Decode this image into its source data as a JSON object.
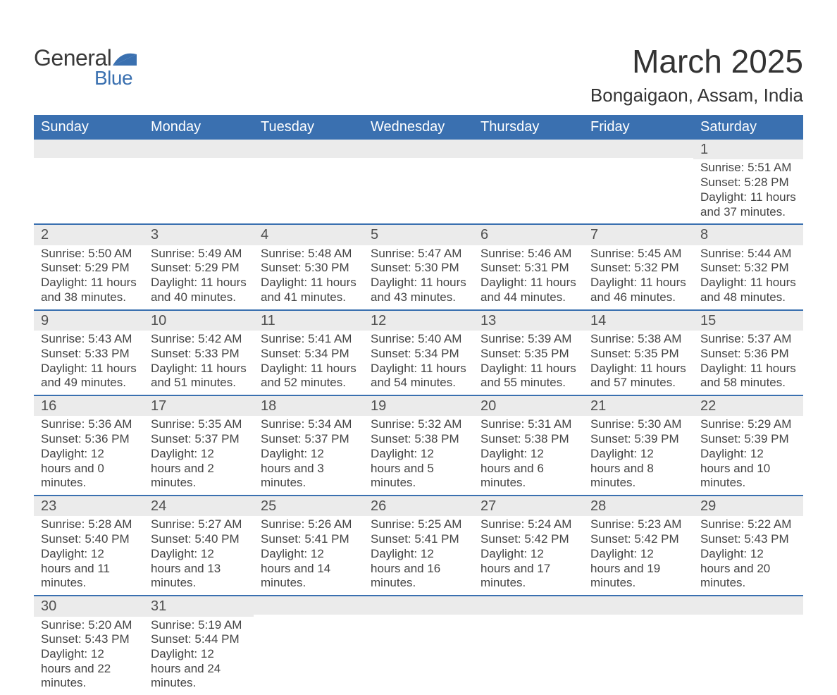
{
  "brand": {
    "word1": "General",
    "word2": "Blue",
    "accent_color": "#3a70b0"
  },
  "title": "March 2025",
  "location": "Bongaigaon, Assam, India",
  "colors": {
    "header_bg": "#3a70b0",
    "header_text": "#ffffff",
    "strip_bg": "#ebebeb",
    "body_text": "#444444",
    "row_border": "#3a70b0",
    "page_bg": "#ffffff"
  },
  "typography": {
    "title_fontsize": 46,
    "location_fontsize": 26,
    "dayheader_fontsize": 20,
    "daynum_fontsize": 20,
    "body_fontsize": 17
  },
  "day_headers": [
    "Sunday",
    "Monday",
    "Tuesday",
    "Wednesday",
    "Thursday",
    "Friday",
    "Saturday"
  ],
  "weeks": [
    [
      {
        "n": "",
        "sunrise": "",
        "sunset": "",
        "daylight": ""
      },
      {
        "n": "",
        "sunrise": "",
        "sunset": "",
        "daylight": ""
      },
      {
        "n": "",
        "sunrise": "",
        "sunset": "",
        "daylight": ""
      },
      {
        "n": "",
        "sunrise": "",
        "sunset": "",
        "daylight": ""
      },
      {
        "n": "",
        "sunrise": "",
        "sunset": "",
        "daylight": ""
      },
      {
        "n": "",
        "sunrise": "",
        "sunset": "",
        "daylight": ""
      },
      {
        "n": "1",
        "sunrise": "Sunrise: 5:51 AM",
        "sunset": "Sunset: 5:28 PM",
        "daylight": "Daylight: 11 hours and 37 minutes."
      }
    ],
    [
      {
        "n": "2",
        "sunrise": "Sunrise: 5:50 AM",
        "sunset": "Sunset: 5:29 PM",
        "daylight": "Daylight: 11 hours and 38 minutes."
      },
      {
        "n": "3",
        "sunrise": "Sunrise: 5:49 AM",
        "sunset": "Sunset: 5:29 PM",
        "daylight": "Daylight: 11 hours and 40 minutes."
      },
      {
        "n": "4",
        "sunrise": "Sunrise: 5:48 AM",
        "sunset": "Sunset: 5:30 PM",
        "daylight": "Daylight: 11 hours and 41 minutes."
      },
      {
        "n": "5",
        "sunrise": "Sunrise: 5:47 AM",
        "sunset": "Sunset: 5:30 PM",
        "daylight": "Daylight: 11 hours and 43 minutes."
      },
      {
        "n": "6",
        "sunrise": "Sunrise: 5:46 AM",
        "sunset": "Sunset: 5:31 PM",
        "daylight": "Daylight: 11 hours and 44 minutes."
      },
      {
        "n": "7",
        "sunrise": "Sunrise: 5:45 AM",
        "sunset": "Sunset: 5:32 PM",
        "daylight": "Daylight: 11 hours and 46 minutes."
      },
      {
        "n": "8",
        "sunrise": "Sunrise: 5:44 AM",
        "sunset": "Sunset: 5:32 PM",
        "daylight": "Daylight: 11 hours and 48 minutes."
      }
    ],
    [
      {
        "n": "9",
        "sunrise": "Sunrise: 5:43 AM",
        "sunset": "Sunset: 5:33 PM",
        "daylight": "Daylight: 11 hours and 49 minutes."
      },
      {
        "n": "10",
        "sunrise": "Sunrise: 5:42 AM",
        "sunset": "Sunset: 5:33 PM",
        "daylight": "Daylight: 11 hours and 51 minutes."
      },
      {
        "n": "11",
        "sunrise": "Sunrise: 5:41 AM",
        "sunset": "Sunset: 5:34 PM",
        "daylight": "Daylight: 11 hours and 52 minutes."
      },
      {
        "n": "12",
        "sunrise": "Sunrise: 5:40 AM",
        "sunset": "Sunset: 5:34 PM",
        "daylight": "Daylight: 11 hours and 54 minutes."
      },
      {
        "n": "13",
        "sunrise": "Sunrise: 5:39 AM",
        "sunset": "Sunset: 5:35 PM",
        "daylight": "Daylight: 11 hours and 55 minutes."
      },
      {
        "n": "14",
        "sunrise": "Sunrise: 5:38 AM",
        "sunset": "Sunset: 5:35 PM",
        "daylight": "Daylight: 11 hours and 57 minutes."
      },
      {
        "n": "15",
        "sunrise": "Sunrise: 5:37 AM",
        "sunset": "Sunset: 5:36 PM",
        "daylight": "Daylight: 11 hours and 58 minutes."
      }
    ],
    [
      {
        "n": "16",
        "sunrise": "Sunrise: 5:36 AM",
        "sunset": "Sunset: 5:36 PM",
        "daylight": "Daylight: 12 hours and 0 minutes."
      },
      {
        "n": "17",
        "sunrise": "Sunrise: 5:35 AM",
        "sunset": "Sunset: 5:37 PM",
        "daylight": "Daylight: 12 hours and 2 minutes."
      },
      {
        "n": "18",
        "sunrise": "Sunrise: 5:34 AM",
        "sunset": "Sunset: 5:37 PM",
        "daylight": "Daylight: 12 hours and 3 minutes."
      },
      {
        "n": "19",
        "sunrise": "Sunrise: 5:32 AM",
        "sunset": "Sunset: 5:38 PM",
        "daylight": "Daylight: 12 hours and 5 minutes."
      },
      {
        "n": "20",
        "sunrise": "Sunrise: 5:31 AM",
        "sunset": "Sunset: 5:38 PM",
        "daylight": "Daylight: 12 hours and 6 minutes."
      },
      {
        "n": "21",
        "sunrise": "Sunrise: 5:30 AM",
        "sunset": "Sunset: 5:39 PM",
        "daylight": "Daylight: 12 hours and 8 minutes."
      },
      {
        "n": "22",
        "sunrise": "Sunrise: 5:29 AM",
        "sunset": "Sunset: 5:39 PM",
        "daylight": "Daylight: 12 hours and 10 minutes."
      }
    ],
    [
      {
        "n": "23",
        "sunrise": "Sunrise: 5:28 AM",
        "sunset": "Sunset: 5:40 PM",
        "daylight": "Daylight: 12 hours and 11 minutes."
      },
      {
        "n": "24",
        "sunrise": "Sunrise: 5:27 AM",
        "sunset": "Sunset: 5:40 PM",
        "daylight": "Daylight: 12 hours and 13 minutes."
      },
      {
        "n": "25",
        "sunrise": "Sunrise: 5:26 AM",
        "sunset": "Sunset: 5:41 PM",
        "daylight": "Daylight: 12 hours and 14 minutes."
      },
      {
        "n": "26",
        "sunrise": "Sunrise: 5:25 AM",
        "sunset": "Sunset: 5:41 PM",
        "daylight": "Daylight: 12 hours and 16 minutes."
      },
      {
        "n": "27",
        "sunrise": "Sunrise: 5:24 AM",
        "sunset": "Sunset: 5:42 PM",
        "daylight": "Daylight: 12 hours and 17 minutes."
      },
      {
        "n": "28",
        "sunrise": "Sunrise: 5:23 AM",
        "sunset": "Sunset: 5:42 PM",
        "daylight": "Daylight: 12 hours and 19 minutes."
      },
      {
        "n": "29",
        "sunrise": "Sunrise: 5:22 AM",
        "sunset": "Sunset: 5:43 PM",
        "daylight": "Daylight: 12 hours and 20 minutes."
      }
    ],
    [
      {
        "n": "30",
        "sunrise": "Sunrise: 5:20 AM",
        "sunset": "Sunset: 5:43 PM",
        "daylight": "Daylight: 12 hours and 22 minutes."
      },
      {
        "n": "31",
        "sunrise": "Sunrise: 5:19 AM",
        "sunset": "Sunset: 5:44 PM",
        "daylight": "Daylight: 12 hours and 24 minutes."
      },
      {
        "n": "",
        "sunrise": "",
        "sunset": "",
        "daylight": ""
      },
      {
        "n": "",
        "sunrise": "",
        "sunset": "",
        "daylight": ""
      },
      {
        "n": "",
        "sunrise": "",
        "sunset": "",
        "daylight": ""
      },
      {
        "n": "",
        "sunrise": "",
        "sunset": "",
        "daylight": ""
      },
      {
        "n": "",
        "sunrise": "",
        "sunset": "",
        "daylight": ""
      }
    ]
  ]
}
